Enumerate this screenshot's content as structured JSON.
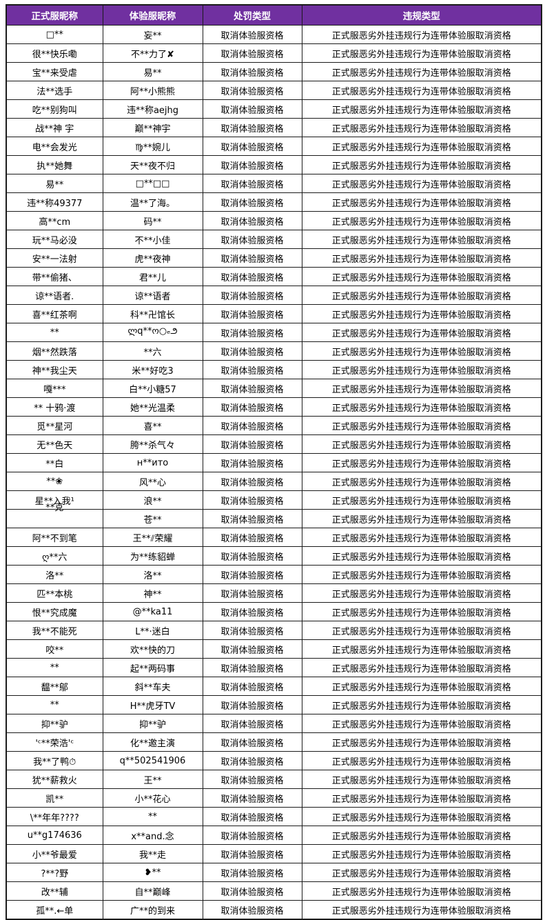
{
  "accent_colors": {
    "header_background": "#7030a0",
    "header_text": "#ffffff",
    "grid_border": "#1a1a1a",
    "body_text": "#000000"
  },
  "table": {
    "headers": [
      "正式服昵称",
      "体验服昵称",
      "处罚类型",
      "违规类型"
    ],
    "rows": [
      {
        "official": "□**",
        "experience": "妄**",
        "punishment": "取消体验服资格",
        "violation": "正式服恶劣外挂违规行为连带体验服取消资格"
      },
      {
        "official": "很**快乐嘞",
        "experience": "不**力了✘",
        "punishment": "取消体验服资格",
        "violation": "正式服恶劣外挂违规行为连带体验服取消资格"
      },
      {
        "official": "宝**来受虐",
        "experience": "易**",
        "punishment": "取消体验服资格",
        "violation": "正式服恶劣外挂违规行为连带体验服取消资格"
      },
      {
        "official": "法**选手",
        "experience": "阿**小熊熊",
        "punishment": "取消体验服资格",
        "violation": "正式服恶劣外挂违规行为连带体验服取消资格"
      },
      {
        "official": "吃**别狗叫",
        "experience": "违**称aejhg",
        "punishment": "取消体验服资格",
        "violation": "正式服恶劣外挂违规行为连带体验服取消资格"
      },
      {
        "official": "战**神 宇",
        "experience": "巅**神宇",
        "punishment": "取消体验服资格",
        "violation": "正式服恶劣外挂违规行为连带体验服取消资格"
      },
      {
        "official": "电**会发光",
        "experience": "♍**婉儿",
        "punishment": "取消体验服资格",
        "violation": "正式服恶劣外挂违规行为连带体验服取消资格"
      },
      {
        "official": "执**她舞",
        "experience": "天**夜不归",
        "punishment": "取消体验服资格",
        "violation": "正式服恶劣外挂违规行为连带体验服取消资格"
      },
      {
        "official": "易**",
        "experience": "□**□□",
        "punishment": "取消体验服资格",
        "violation": "正式服恶劣外挂违规行为连带体验服取消资格"
      },
      {
        "official": "违**称49377",
        "experience": "温**了海。",
        "punishment": "取消体验服资格",
        "violation": "正式服恶劣外挂违规行为连带体验服取消资格"
      },
      {
        "official": "高**cm",
        "experience": "码**",
        "punishment": "取消体验服资格",
        "violation": "正式服恶劣外挂违规行为连带体验服取消资格"
      },
      {
        "official": "玩**马必没",
        "experience": "不**小佳",
        "punishment": "取消体验服资格",
        "violation": "正式服恶劣外挂违规行为连带体验服取消资格"
      },
      {
        "official": "安**一法射",
        "experience": "虎**夜神",
        "punishment": "取消体验服资格",
        "violation": "正式服恶劣外挂违规行为连带体验服取消资格"
      },
      {
        "official": "带**偷猪、",
        "experience": "君**儿",
        "punishment": "取消体验服资格",
        "violation": "正式服恶劣外挂违规行为连带体验服取消资格"
      },
      {
        "official": "谅**语者.",
        "experience": "谅**语者",
        "punishment": "取消体验服资格",
        "violation": "正式服恶劣外挂违规行为连带体验服取消资格"
      },
      {
        "official": "喜**红茶啊",
        "experience": "科**卍馆长",
        "punishment": "取消体验服资格",
        "violation": "正式服恶劣外挂违规行为连带体验服取消资格"
      },
      {
        "official": "**",
        "experience": "ლq**ო○ₑ౨",
        "punishment": "取消体验服资格",
        "violation": "正式服恶劣外挂违规行为连带体验服取消资格"
      },
      {
        "official": "烟**然跌落",
        "experience": "**六",
        "punishment": "取消体验服资格",
        "violation": "正式服恶劣外挂违规行为连带体验服取消资格"
      },
      {
        "official": "神**我尘天",
        "experience": "米**好吃3",
        "punishment": "取消体验服资格",
        "violation": "正式服恶劣外挂违规行为连带体验服取消资格"
      },
      {
        "official": "嘎***",
        "experience": "白**小糖57",
        "punishment": "取消体验服资格",
        "violation": "正式服恶劣外挂违规行为连带体验服取消资格"
      },
      {
        "official": "** 十鸦·渡",
        "experience": "她**光温柔",
        "punishment": "取消体验服资格",
        "violation": "正式服恶劣外挂违规行为连带体验服取消资格"
      },
      {
        "official": "觅**星河",
        "experience": "喜**",
        "punishment": "取消体验服资格",
        "violation": "正式服恶劣外挂违规行为连带体验服取消资格"
      },
      {
        "official": "无**色天",
        "experience": "胯**杀气々",
        "punishment": "取消体验服资格",
        "violation": "正式服恶劣外挂违规行为连带体验服取消资格"
      },
      {
        "official": "**白",
        "experience": "н**ито",
        "punishment": "取消体验服资格",
        "violation": "正式服恶劣外挂违规行为连带体验服取消资格"
      },
      {
        "official": "**❀",
        "experience": "风**心",
        "punishment": "取消体验服资格",
        "violation": "正式服恶劣外挂违规行为连带体验服取消资格"
      },
      {
        "official": "星**入我¹",
        "experience": "浪**",
        "punishment": "取消体验服资格",
        "violation": "正式服恶劣外挂违规行为连带体验服取消资格"
      },
      {
        "official": "**克",
        "experience": "苍**",
        "punishment": "取消体验服资格",
        "violation": "正式服恶劣外挂违规行为连带体验服取消资格"
      },
      {
        "official": "阿**不到笔",
        "experience": "王**⫽荣耀",
        "punishment": "取消体验服资格",
        "violation": "正式服恶劣外挂违规行为连带体验服取消资格"
      },
      {
        "official": "ღ**六",
        "experience": "为**练貂蝉",
        "punishment": "取消体验服资格",
        "violation": "正式服恶劣外挂违规行为连带体验服取消资格"
      },
      {
        "official": "洛**",
        "experience": "洛**",
        "punishment": "取消体验服资格",
        "violation": "正式服恶劣外挂违规行为连带体验服取消资格"
      },
      {
        "official": "匹**本桃",
        "experience": "神**",
        "punishment": "取消体验服资格",
        "violation": "正式服恶劣外挂违规行为连带体验服取消资格"
      },
      {
        "official": "恨**究成魔",
        "experience": "@**ka11",
        "punishment": "取消体验服资格",
        "violation": "正式服恶劣外挂违规行为连带体验服取消资格"
      },
      {
        "official": "我**不能死",
        "experience": "L**·迷白",
        "punishment": "取消体验服资格",
        "violation": "正式服恶劣外挂违规行为连带体验服取消资格"
      },
      {
        "official": "咬**",
        "experience": "欢**快的刀",
        "punishment": "取消体验服资格",
        "violation": "正式服恶劣外挂违规行为连带体验服取消资格"
      },
      {
        "official": "**",
        "experience": "起**两码事",
        "punishment": "取消体验服资格",
        "violation": "正式服恶劣外挂违规行为连带体验服取消资格"
      },
      {
        "official": "馧**鄔",
        "experience": "斜**车夫",
        "punishment": "取消体验服资格",
        "violation": "正式服恶劣外挂违规行为连带体验服取消资格"
      },
      {
        "official": "**",
        "experience": "H**虎牙TV",
        "punishment": "取消体验服资格",
        "violation": "正式服恶劣外挂违规行为连带体验服取消资格"
      },
      {
        "official": "抑**驴",
        "experience": "抑**驴",
        "punishment": "取消体验服资格",
        "violation": "正式服恶劣外挂违规行为连带体验服取消资格"
      },
      {
        "official": "'ᶜ**荣浩'ᶜ",
        "experience": "化**邀主演",
        "punishment": "取消体验服资格",
        "violation": "正式服恶劣外挂违规行为连带体验服取消资格"
      },
      {
        "official": "我**了鸭⏱",
        "experience": "q**502541906",
        "punishment": "取消体验服资格",
        "violation": "正式服恶劣外挂违规行为连带体验服取消资格"
      },
      {
        "official": "犹**薪救火",
        "experience": "王**",
        "punishment": "取消体验服资格",
        "violation": "正式服恶劣外挂违规行为连带体验服取消资格"
      },
      {
        "official": "凯**",
        "experience": "小**花心",
        "punishment": "取消体验服资格",
        "violation": "正式服恶劣外挂违规行为连带体验服取消资格"
      },
      {
        "official": "\\**年年????",
        "experience": "**",
        "punishment": "取消体验服资格",
        "violation": "正式服恶劣外挂违规行为连带体验服取消资格"
      },
      {
        "official": "u**g174636",
        "experience": "x**and.念",
        "punishment": "取消体验服资格",
        "violation": "正式服恶劣外挂违规行为连带体验服取消资格"
      },
      {
        "official": "小**爷最爱",
        "experience": "我**走",
        "punishment": "取消体验服资格",
        "violation": "正式服恶劣外挂违规行为连带体验服取消资格"
      },
      {
        "official": "?**?野",
        "experience": "❥**",
        "punishment": "取消体验服资格",
        "violation": "正式服恶劣外挂违规行为连带体验服取消资格"
      },
      {
        "official": "改**辅",
        "experience": "自**巅峰",
        "punishment": "取消体验服资格",
        "violation": "正式服恶劣外挂违规行为连带体验服取消资格"
      },
      {
        "official": "孤**.←单",
        "experience": "广**的到来",
        "punishment": "取消体验服资格",
        "violation": "正式服恶劣外挂违规行为连带体验服取消资格"
      }
    ]
  }
}
